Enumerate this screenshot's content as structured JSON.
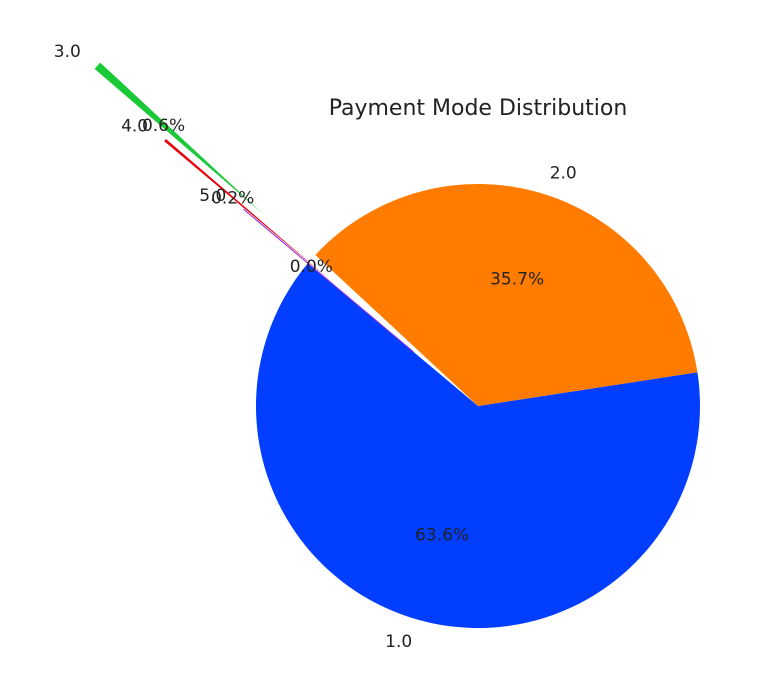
{
  "chart_data": {
    "type": "pie",
    "title": "Payment Mode Distribution",
    "categories": [
      "1.0",
      "2.0",
      "3.0",
      "4.0",
      "5.0"
    ],
    "values": [
      63.6,
      35.7,
      0.6,
      0.2,
      0.0
    ],
    "percent_labels": [
      "63.6%",
      "35.7%",
      "0.6%",
      "0.2%",
      "0.0%"
    ],
    "colors": [
      "#023eff",
      "#ff7c00",
      "#1ac938",
      "#e8000b",
      "#8b2be2"
    ],
    "exploded": [
      "3.0",
      "4.0",
      "5.0"
    ],
    "start_angle_deg": 140,
    "direction": "counterclockwise",
    "legend": "none"
  }
}
